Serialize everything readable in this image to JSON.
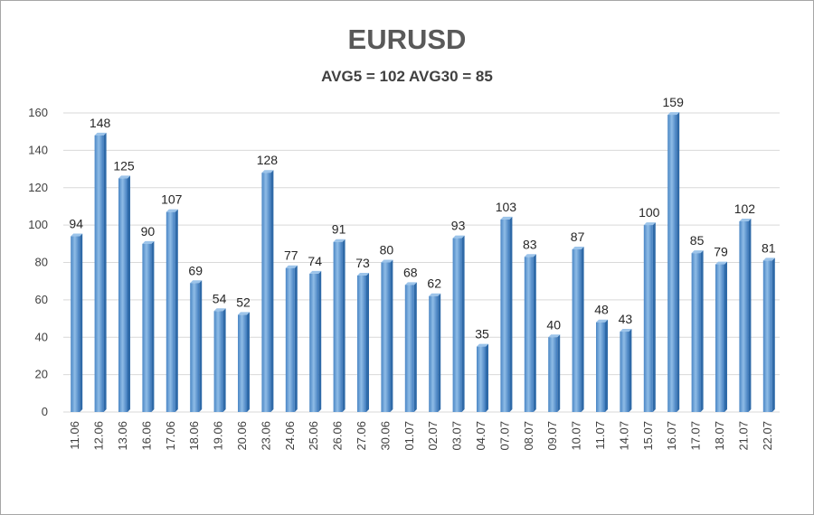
{
  "chart_data": {
    "type": "bar",
    "title": "EURUSD",
    "subtitle": "AVG5 = 102 AVG30 = 85",
    "xlabel": "",
    "ylabel": "",
    "ylim": [
      0,
      160
    ],
    "yticks": [
      0,
      20,
      40,
      60,
      80,
      100,
      120,
      140,
      160
    ],
    "grid": true,
    "legend": "none",
    "bar_color": "#5b9bd5",
    "categories": [
      "11.06",
      "12.06",
      "13.06",
      "16.06",
      "17.06",
      "18.06",
      "19.06",
      "20.06",
      "23.06",
      "24.06",
      "25.06",
      "26.06",
      "27.06",
      "30.06",
      "01.07",
      "02.07",
      "03.07",
      "04.07",
      "07.07",
      "08.07",
      "09.07",
      "10.07",
      "11.07",
      "14.07",
      "15.07",
      "16.07",
      "17.07",
      "18.07",
      "21.07",
      "22.07"
    ],
    "values": [
      94,
      148,
      125,
      90,
      107,
      69,
      54,
      52,
      128,
      77,
      74,
      91,
      73,
      80,
      68,
      62,
      93,
      35,
      103,
      83,
      40,
      87,
      48,
      43,
      100,
      159,
      85,
      79,
      102,
      81
    ]
  }
}
